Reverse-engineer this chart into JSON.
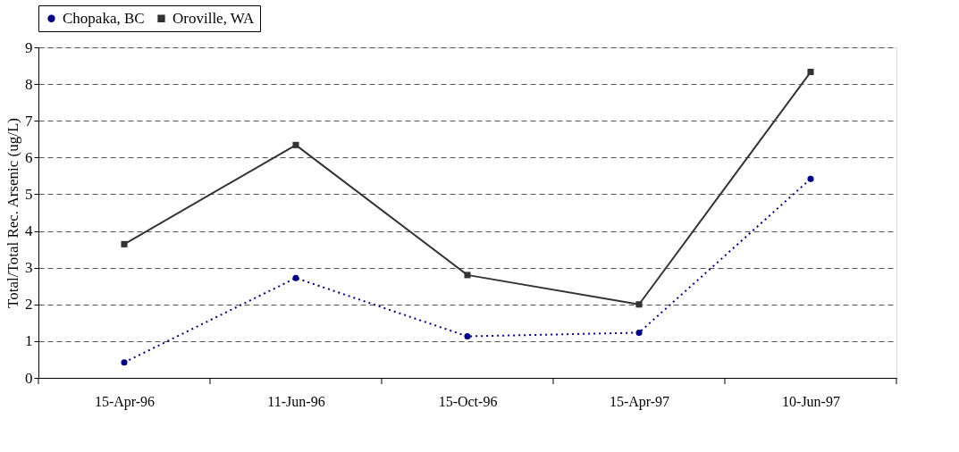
{
  "chart_data": {
    "type": "line",
    "ylabel": "Total/Total Rec. Arsenic (ug/L)",
    "categories": [
      "15-Apr-96",
      "11-Jun-96",
      "15-Oct-96",
      "15-Apr-97",
      "10-Jun-97"
    ],
    "series": [
      {
        "name": "Chopaka, BC",
        "color": "#000080",
        "values": [
          0.42,
          2.72,
          1.13,
          1.23,
          5.42
        ],
        "marker": "circle",
        "line_style": "dotted"
      },
      {
        "name": "Oroville, WA",
        "color": "#333333",
        "values": [
          3.64,
          6.34,
          2.8,
          2.0,
          8.33
        ],
        "marker": "square",
        "line_style": "solid"
      }
    ],
    "ylim": [
      0,
      9
    ],
    "yticks": [
      0,
      1,
      2,
      3,
      4,
      5,
      6,
      7,
      8,
      9
    ],
    "grid": "y",
    "legend": "top"
  }
}
